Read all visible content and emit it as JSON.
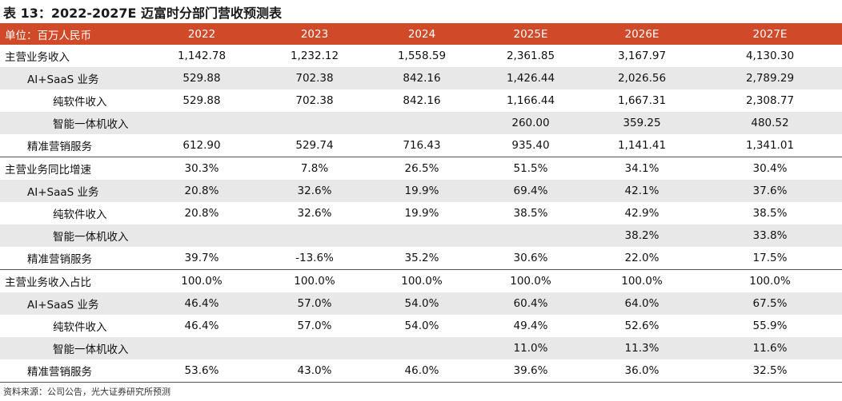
{
  "title": "表 13：2022-2027E 迈富时分部门营收预测表",
  "header": {
    "label": "单位：百万人民币",
    "years": [
      "2022",
      "2023",
      "2024",
      "2025E",
      "2026E",
      "2027E"
    ]
  },
  "sections": [
    {
      "rows": [
        {
          "label": "主营业务收入",
          "level": 0,
          "values": [
            "1,142.78",
            "1,232.12",
            "1,558.59",
            "2,361.85",
            "3,167.97",
            "4,130.30"
          ]
        },
        {
          "label": "AI+SaaS 业务",
          "level": 1,
          "values": [
            "529.88",
            "702.38",
            "842.16",
            "1,426.44",
            "2,026.56",
            "2,789.29"
          ]
        },
        {
          "label": "纯软件收入",
          "level": 2,
          "values": [
            "529.88",
            "702.38",
            "842.16",
            "1,166.44",
            "1,667.31",
            "2,308.77"
          ]
        },
        {
          "label": "智能一体机收入",
          "level": 2,
          "values": [
            "",
            "",
            "",
            "260.00",
            "359.25",
            "480.52"
          ]
        },
        {
          "label": "精准营销服务",
          "level": 1,
          "values": [
            "612.90",
            "529.74",
            "716.43",
            "935.40",
            "1,141.41",
            "1,341.01"
          ]
        }
      ]
    },
    {
      "rows": [
        {
          "label": "主营业务同比增速",
          "level": 0,
          "values": [
            "30.3%",
            "7.8%",
            "26.5%",
            "51.5%",
            "34.1%",
            "30.4%"
          ]
        },
        {
          "label": "AI+SaaS 业务",
          "level": 1,
          "values": [
            "20.8%",
            "32.6%",
            "19.9%",
            "69.4%",
            "42.1%",
            "37.6%"
          ]
        },
        {
          "label": "纯软件收入",
          "level": 2,
          "values": [
            "20.8%",
            "32.6%",
            "19.9%",
            "38.5%",
            "42.9%",
            "38.5%"
          ]
        },
        {
          "label": "智能一体机收入",
          "level": 2,
          "values": [
            "",
            "",
            "",
            "",
            "38.2%",
            "33.8%"
          ]
        },
        {
          "label": "精准营销服务",
          "level": 1,
          "values": [
            "39.7%",
            "-13.6%",
            "35.2%",
            "30.6%",
            "22.0%",
            "17.5%"
          ]
        }
      ]
    },
    {
      "rows": [
        {
          "label": "主营业务收入占比",
          "level": 0,
          "values": [
            "100.0%",
            "100.0%",
            "100.0%",
            "100.0%",
            "100.0%",
            "100.0%"
          ]
        },
        {
          "label": "AI+SaaS 业务",
          "level": 1,
          "values": [
            "46.4%",
            "57.0%",
            "54.0%",
            "60.4%",
            "64.0%",
            "67.5%"
          ]
        },
        {
          "label": "纯软件收入",
          "level": 2,
          "values": [
            "46.4%",
            "57.0%",
            "54.0%",
            "49.4%",
            "52.6%",
            "55.9%"
          ]
        },
        {
          "label": "智能一体机收入",
          "level": 2,
          "values": [
            "",
            "",
            "",
            "11.0%",
            "11.3%",
            "11.6%"
          ]
        },
        {
          "label": "精准营销服务",
          "level": 1,
          "values": [
            "53.6%",
            "43.0%",
            "46.0%",
            "39.6%",
            "36.0%",
            "32.5%"
          ]
        }
      ]
    }
  ],
  "source": "资料来源：公司公告，光大证券研究所预测",
  "colors": {
    "header_bg": "#d04a2a",
    "header_text": "#ffffff",
    "shade": "#e8e8e8"
  }
}
